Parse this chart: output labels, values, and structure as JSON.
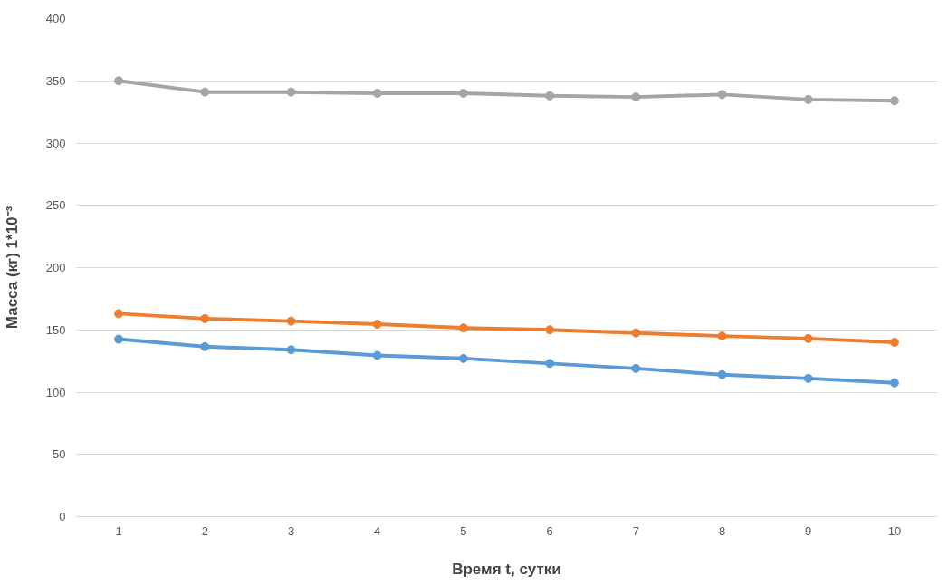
{
  "chart_data": {
    "type": "line",
    "xlabel": "Время t, сутки",
    "ylabel": "Масса (кг) 1*10⁻³",
    "categories": [
      "1",
      "2",
      "3",
      "4",
      "5",
      "6",
      "7",
      "8",
      "9",
      "10"
    ],
    "series": [
      {
        "color": "#5b9bd5",
        "values": [
          142.5,
          136.5,
          134,
          129.5,
          127,
          123,
          119,
          114,
          111,
          107.5
        ]
      },
      {
        "color": "#ed7d31",
        "values": [
          163,
          159,
          157,
          154.5,
          151.5,
          150,
          147.5,
          145,
          143,
          140
        ]
      },
      {
        "color": "#a5a5a5",
        "values": [
          350,
          341,
          341,
          340,
          340,
          338,
          337,
          339,
          335,
          334
        ]
      }
    ],
    "ylim": [
      0,
      400
    ],
    "yticks": [
      0,
      50,
      100,
      150,
      200,
      250,
      300,
      350,
      400
    ],
    "grid": "y",
    "marker": "circle",
    "line_style": "solid"
  }
}
